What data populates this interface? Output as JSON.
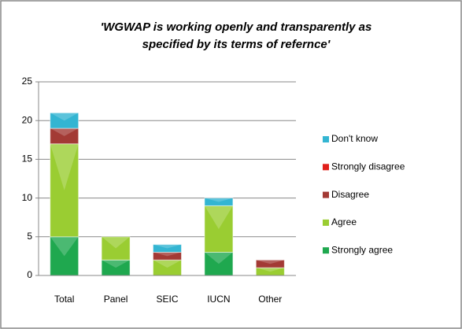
{
  "chart_data": {
    "type": "stacked_bar",
    "title": [
      "'WGWAP is working openly and transparently as",
      "specified by its terms of refernce'"
    ],
    "categories": [
      "Total",
      "Panel",
      "SEIC",
      "IUCN",
      "Other"
    ],
    "series": [
      {
        "name": "Strongly agree",
        "color": "#1fa84f",
        "values": [
          5,
          2,
          0,
          3,
          0
        ]
      },
      {
        "name": "Agree",
        "color": "#9acd32",
        "values": [
          12,
          3,
          2,
          6,
          1
        ]
      },
      {
        "name": "Disagree",
        "color": "#a33a35",
        "values": [
          2,
          0,
          1,
          0,
          1
        ]
      },
      {
        "name": "Strongly disagree",
        "color": "#e0201b",
        "values": [
          0,
          0,
          0,
          0,
          0
        ]
      },
      {
        "name": "Don't know",
        "color": "#33b5d2",
        "values": [
          2,
          0,
          1,
          1,
          0
        ]
      }
    ],
    "ylim": [
      0,
      25
    ],
    "yticks": [
      0,
      5,
      10,
      15,
      20,
      25
    ],
    "grid": true
  }
}
